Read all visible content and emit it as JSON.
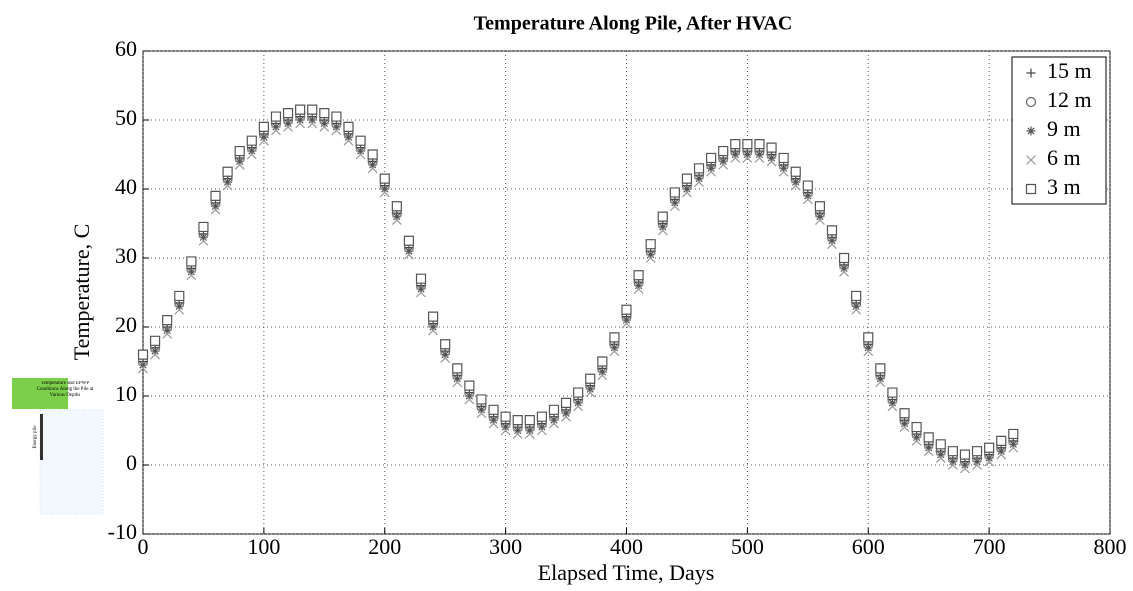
{
  "chart_data": {
    "type": "scatter",
    "title": "Temperature Along Pile, After HVAC",
    "xlabel": "Elapsed Time, Days",
    "ylabel": "Temperature, C",
    "xlim": [
      0,
      800
    ],
    "xticks": [
      0,
      100,
      200,
      300,
      400,
      500,
      600,
      700,
      800
    ],
    "ylim": [
      -10,
      60
    ],
    "yticks": [
      -10,
      0,
      10,
      20,
      30,
      40,
      50,
      60
    ],
    "grid": true,
    "legend": "upper right",
    "x": [
      0,
      10,
      20,
      30,
      40,
      50,
      60,
      70,
      80,
      90,
      100,
      110,
      120,
      130,
      140,
      150,
      160,
      170,
      180,
      190,
      200,
      210,
      220,
      230,
      240,
      250,
      260,
      270,
      280,
      290,
      300,
      310,
      320,
      330,
      340,
      350,
      360,
      370,
      380,
      390,
      400,
      410,
      420,
      430,
      440,
      450,
      460,
      470,
      480,
      490,
      500,
      510,
      520,
      530,
      540,
      550,
      560,
      570,
      580,
      590,
      600,
      610,
      620,
      630,
      640,
      650,
      660,
      670,
      680,
      690,
      700,
      710,
      720
    ],
    "series": [
      {
        "name": "15 m",
        "marker": "plus",
        "color": "#444444",
        "values": [
          15,
          17,
          20,
          23.5,
          28.5,
          33.5,
          38,
          41.5,
          44.5,
          46,
          48,
          49.5,
          50,
          50.5,
          50.5,
          50,
          49.5,
          48,
          46,
          44,
          40.5,
          36.5,
          31.5,
          26,
          20.5,
          16.5,
          13,
          10.5,
          8.5,
          7,
          6,
          5.5,
          5.5,
          6,
          7,
          8,
          9.5,
          11.5,
          14,
          17.5,
          21.5,
          26.5,
          31,
          35,
          38.5,
          40.5,
          42,
          43.5,
          44.5,
          45.5,
          45.5,
          45.5,
          45,
          43.5,
          41.5,
          39.5,
          36.5,
          33,
          29,
          23.5,
          17.5,
          13,
          9.5,
          6.5,
          4.5,
          3,
          2,
          1,
          0.5,
          1,
          1.5,
          2.5,
          3.5
        ]
      },
      {
        "name": "12 m",
        "marker": "circle",
        "color": "#666666",
        "values": [
          15,
          17,
          20,
          23.5,
          28.5,
          33.5,
          38,
          41.5,
          44.5,
          46,
          48,
          49.5,
          50,
          50.5,
          50.5,
          50,
          49.5,
          48,
          46,
          44,
          40.5,
          36.5,
          31.5,
          26,
          20.5,
          16.5,
          13,
          10.5,
          8.5,
          7,
          6,
          5.5,
          5.5,
          6,
          7,
          8,
          9.5,
          11.5,
          14,
          17.5,
          21.5,
          26.5,
          31,
          35,
          38.5,
          40.5,
          42,
          43.5,
          44.5,
          45.5,
          45.5,
          45.5,
          45,
          43.5,
          41.5,
          39.5,
          36.5,
          33,
          29,
          23.5,
          17.5,
          13,
          9.5,
          6.5,
          4.5,
          3,
          2,
          1,
          0.5,
          1,
          1.5,
          2.5,
          3.5
        ]
      },
      {
        "name": "9 m",
        "marker": "star",
        "color": "#555555",
        "values": [
          14.5,
          16.5,
          19.5,
          23,
          28,
          33,
          37.5,
          41,
          44,
          45.5,
          47.5,
          49,
          49.5,
          50,
          50,
          49.5,
          49,
          47.5,
          45.5,
          43.5,
          40,
          36,
          31,
          25.5,
          20,
          16,
          12.5,
          10,
          8,
          6.5,
          5.5,
          5,
          5,
          5.5,
          6.5,
          7.5,
          9,
          11,
          13.5,
          17,
          21,
          26,
          30.5,
          34.5,
          38,
          40,
          41.5,
          43,
          44,
          45,
          45,
          45,
          44.5,
          43,
          41,
          39,
          36,
          32.5,
          28.5,
          23,
          17,
          12.5,
          9,
          6,
          4,
          2.5,
          1.5,
          0.5,
          0,
          0.5,
          1,
          2,
          3
        ]
      },
      {
        "name": "6 m",
        "marker": "cross",
        "color": "#999999",
        "values": [
          14,
          16,
          19,
          22.5,
          27.5,
          32.5,
          37,
          40.5,
          43.5,
          45,
          47,
          48.5,
          49,
          49.5,
          49.5,
          49,
          48.5,
          47,
          45,
          43,
          39.5,
          35.5,
          30.5,
          25,
          19.5,
          15.5,
          12,
          9.5,
          7.5,
          6,
          5,
          4.5,
          4.5,
          5,
          6,
          7,
          8.5,
          10.5,
          13,
          16.5,
          20.5,
          25.5,
          30,
          34,
          37.5,
          39.5,
          41,
          42.5,
          43.5,
          44.5,
          44.5,
          44.5,
          44,
          42.5,
          40.5,
          38.5,
          35.5,
          32,
          28,
          22.5,
          16.5,
          12,
          8.5,
          5.5,
          3.5,
          2,
          1,
          0,
          -0.5,
          0,
          0.5,
          1.5,
          2.5
        ]
      },
      {
        "name": "3 m",
        "marker": "square",
        "color": "#555555",
        "values": [
          16,
          18,
          21,
          24.5,
          29.5,
          34.5,
          39,
          42.5,
          45.5,
          47,
          49,
          50.5,
          51,
          51.5,
          51.5,
          51,
          50.5,
          49,
          47,
          45,
          41.5,
          37.5,
          32.5,
          27,
          21.5,
          17.5,
          14,
          11.5,
          9.5,
          8,
          7,
          6.5,
          6.5,
          7,
          8,
          9,
          10.5,
          12.5,
          15,
          18.5,
          22.5,
          27.5,
          32,
          36,
          39.5,
          41.5,
          43,
          44.5,
          45.5,
          46.5,
          46.5,
          46.5,
          46,
          44.5,
          42.5,
          40.5,
          37.5,
          34,
          30,
          24.5,
          18.5,
          14,
          10.5,
          7.5,
          5.5,
          4,
          3,
          2,
          1.5,
          2,
          2.5,
          3.5,
          4.5
        ]
      }
    ]
  },
  "inset": {
    "caption": "Temperature and EPWP Conditions Along the Pile at Various Depths",
    "label": "Energy pile"
  }
}
